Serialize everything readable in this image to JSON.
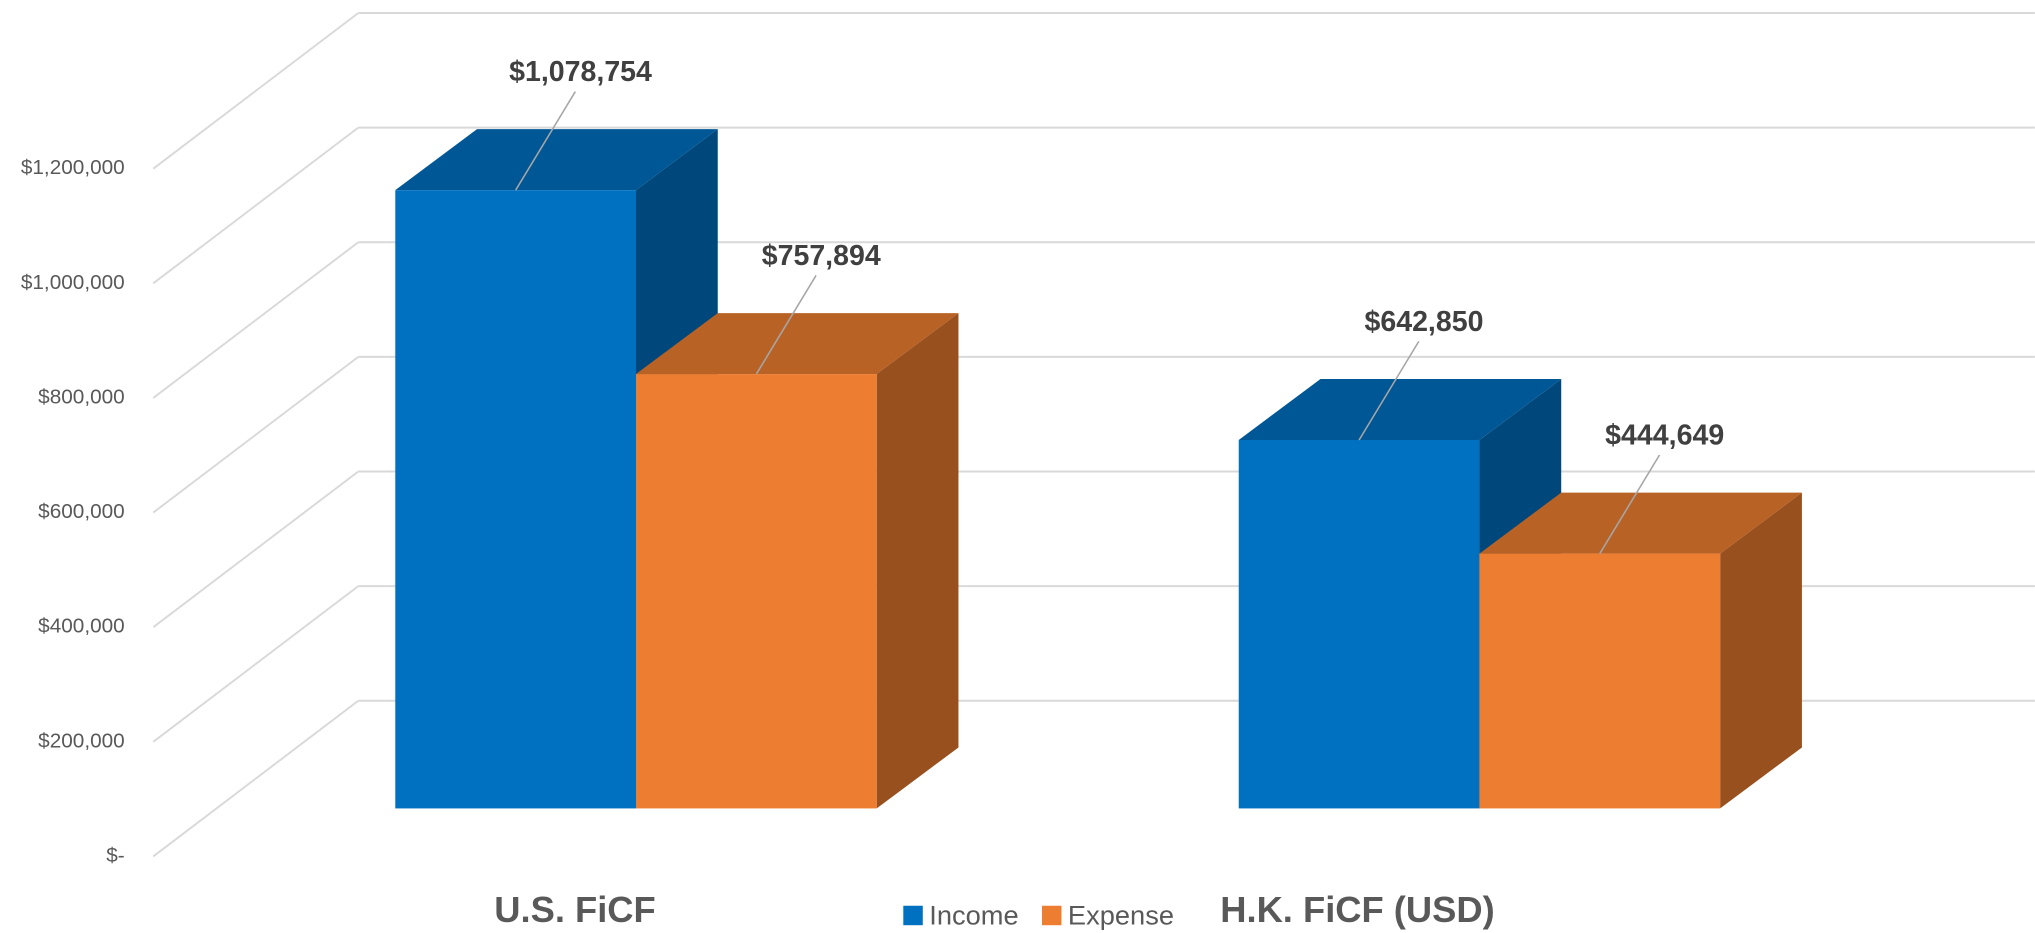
{
  "chart_data": {
    "type": "bar3d",
    "categories": [
      "U.S. FiCF",
      "H.K. FiCF (USD)"
    ],
    "series": [
      {
        "name": "Income",
        "color": "#0070c0",
        "values": [
          1078754,
          642850
        ],
        "value_labels": [
          "$1,078,754",
          "$642,850"
        ]
      },
      {
        "name": "Expense",
        "color": "#ed7d31",
        "values": [
          757894,
          444649
        ],
        "value_labels": [
          "$757,894",
          "$444,649"
        ]
      }
    ],
    "ylim": [
      0,
      1200000
    ],
    "yticks": [
      {
        "value": 0,
        "label": "$-"
      },
      {
        "value": 200000,
        "label": "$200,000"
      },
      {
        "value": 400000,
        "label": "$400,000"
      },
      {
        "value": 600000,
        "label": "$600,000"
      },
      {
        "value": 800000,
        "label": "$800,000"
      },
      {
        "value": 1000000,
        "label": "$1,000,000"
      },
      {
        "value": 1200000,
        "label": "$1,200,000"
      }
    ],
    "grid": true,
    "legend": "bottom"
  }
}
